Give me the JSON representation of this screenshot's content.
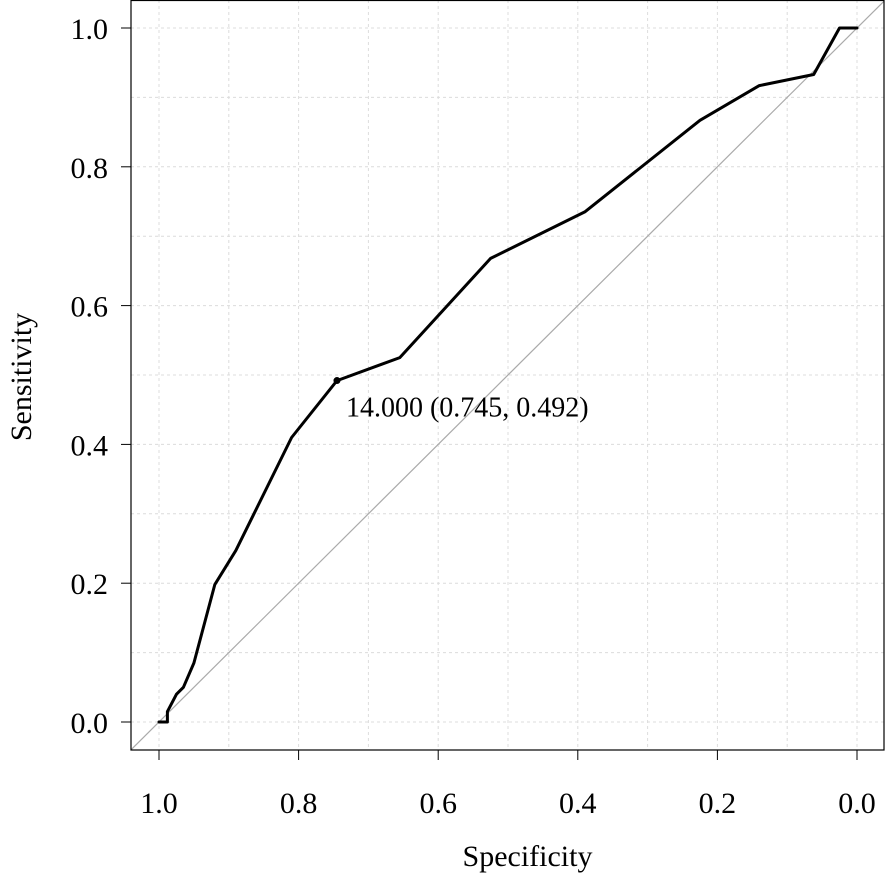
{
  "chart_data": {
    "type": "line",
    "title": "",
    "xlabel": "Specificity",
    "ylabel": "Sensitivity",
    "xlim": [
      1.0,
      0.0
    ],
    "ylim": [
      0.0,
      1.0
    ],
    "x_reversed": true,
    "grid": true,
    "x_ticks": [
      1.0,
      0.8,
      0.6,
      0.4,
      0.2,
      0.0
    ],
    "x_tick_labels": [
      "1.0",
      "0.8",
      "0.6",
      "0.4",
      "0.2",
      "0.0"
    ],
    "y_ticks": [
      0.0,
      0.2,
      0.4,
      0.6,
      0.8,
      1.0
    ],
    "y_tick_labels": [
      "0.0",
      "0.2",
      "0.4",
      "0.6",
      "0.8",
      "1.0"
    ],
    "reference_line": {
      "from": [
        1.0,
        0.0
      ],
      "to": [
        0.0,
        1.0
      ],
      "color": "#aaaaaa"
    },
    "series": [
      {
        "color": "#000000",
        "x": [
          1.0,
          0.988,
          0.988,
          0.975,
          0.965,
          0.95,
          0.92,
          0.89,
          0.81,
          0.745,
          0.655,
          0.525,
          0.39,
          0.225,
          0.14,
          0.062,
          0.025,
          0.0
        ],
        "y": [
          0.0,
          0.0,
          0.015,
          0.04,
          0.05,
          0.085,
          0.198,
          0.247,
          0.41,
          0.492,
          0.525,
          0.668,
          0.735,
          0.867,
          0.917,
          0.933,
          1.0,
          1.0
        ]
      }
    ],
    "highlight_point": {
      "x": 0.745,
      "y": 0.492
    },
    "annotations": [
      {
        "text": "14.000 (0.745, 0.492)",
        "x": 0.745,
        "y": 0.492
      }
    ]
  }
}
